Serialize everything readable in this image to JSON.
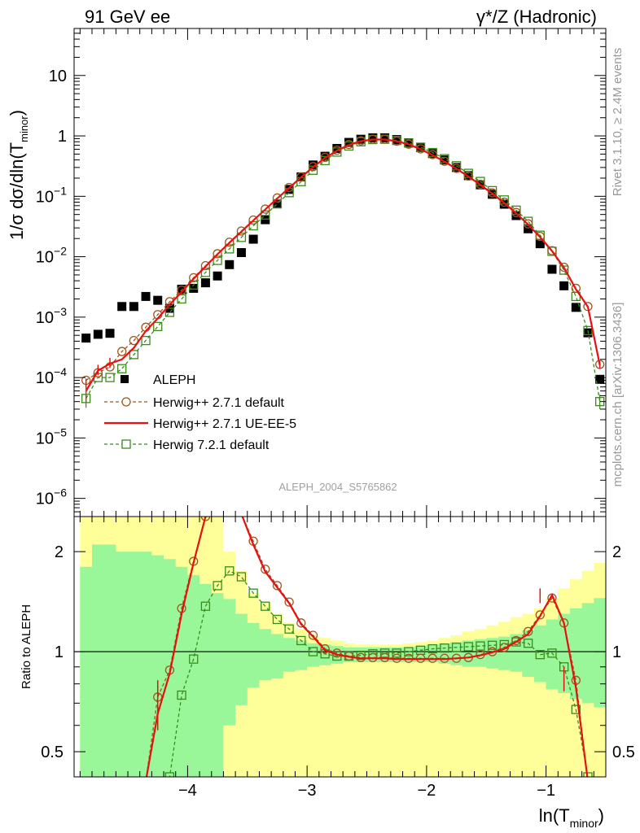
{
  "header": {
    "left": "91 GeV ee",
    "right_prefix": "γ*/Z",
    "right_suffix": "(Hadronic)"
  },
  "side_labels": {
    "rivet": "Rivet 3.1.10, ≥ 2.4M events",
    "mcplots": "mcplots.cern.ch [arXiv:1306.3436]"
  },
  "analysis_tag": "ALEPH_2004_S5765862",
  "legend": {
    "data": "ALEPH",
    "mc1": "Herwig++ 2.7.1 default",
    "mc2": "Herwig++ 2.7.1 UE-EE-5",
    "mc3": "Herwig 7.2.1 default"
  },
  "colors": {
    "data": "#000000",
    "mc1": "#a0561e",
    "mc2": "#e81010",
    "mc3": "#3a8c1a",
    "band_inner": "#99f799",
    "band_outer": "#ffff99"
  },
  "chart_data": [
    {
      "type": "scatter",
      "panel": "main",
      "ylabel_main": "1/σ  dσ/dln(T",
      "ylabel_sub": "minor",
      "ylabel_end": ")",
      "yscale": "log",
      "ylim": [
        5e-07,
        60
      ],
      "xlim": [
        -4.95,
        -0.5
      ],
      "ytick_labels": [
        {
          "value": 1e-06,
          "base": "10",
          "exp": "−6"
        },
        {
          "value": 1e-05,
          "base": "10",
          "exp": "−5"
        },
        {
          "value": 0.0001,
          "base": "10",
          "exp": "−4"
        },
        {
          "value": 0.001,
          "base": "10",
          "exp": "−3"
        },
        {
          "value": 0.01,
          "base": "10",
          "exp": "−2"
        },
        {
          "value": 0.1,
          "base": "10",
          "exp": "−1"
        },
        {
          "value": 1,
          "base": "1",
          "exp": ""
        },
        {
          "value": 10,
          "base": "10",
          "exp": ""
        }
      ],
      "x_edges": [
        -4.9,
        -4.8,
        -4.7,
        -4.6,
        -4.5,
        -4.4,
        -4.3,
        -4.2,
        -4.1,
        -4.0,
        -3.9,
        -3.8,
        -3.7,
        -3.6,
        -3.5,
        -3.4,
        -3.3,
        -3.2,
        -3.1,
        -3.0,
        -2.9,
        -2.8,
        -2.7,
        -2.6,
        -2.5,
        -2.4,
        -2.3,
        -2.2,
        -2.1,
        -2.0,
        -1.9,
        -1.8,
        -1.7,
        -1.6,
        -1.5,
        -1.4,
        -1.3,
        -1.2,
        -1.1,
        -1.0,
        -0.9,
        -0.8,
        -0.7,
        -0.6,
        -0.5
      ],
      "x_centers": [
        -4.85,
        -4.75,
        -4.65,
        -4.55,
        -4.45,
        -4.35,
        -4.25,
        -4.15,
        -4.05,
        -3.95,
        -3.85,
        -3.75,
        -3.65,
        -3.55,
        -3.45,
        -3.35,
        -3.25,
        -3.15,
        -3.05,
        -2.95,
        -2.85,
        -2.75,
        -2.65,
        -2.55,
        -2.45,
        -2.35,
        -2.25,
        -2.15,
        -2.05,
        -1.95,
        -1.85,
        -1.75,
        -1.65,
        -1.55,
        -1.45,
        -1.35,
        -1.25,
        -1.15,
        -1.05,
        -0.95,
        -0.85,
        -0.75,
        -0.65,
        -0.55
      ],
      "series": [
        {
          "name": "ALEPH",
          "values": [
            0.00045,
            0.00052,
            0.00054,
            0.0015,
            0.0015,
            0.0022,
            0.0019,
            0.0014,
            0.0029,
            0.003,
            0.0037,
            0.0048,
            0.0074,
            0.0117,
            0.0195,
            0.041,
            0.075,
            0.13,
            0.21,
            0.33,
            0.46,
            0.62,
            0.78,
            0.88,
            0.93,
            0.93,
            0.87,
            0.77,
            0.64,
            0.51,
            0.4,
            0.3,
            0.22,
            0.155,
            0.108,
            0.074,
            0.048,
            0.029,
            0.0164,
            0.0062,
            0.0033,
            0.00145,
            0.00055,
            9.35e-05
          ]
        },
        {
          "name": "Herwig++ 2.7.1 default",
          "values": [
            9e-05,
            0.00012,
            0.00015,
            0.00027,
            0.00041,
            0.00068,
            0.0011,
            0.0018,
            0.0028,
            0.0045,
            0.0071,
            0.0112,
            0.0174,
            0.0266,
            0.0405,
            0.0615,
            0.094,
            0.14,
            0.21,
            0.31,
            0.44,
            0.58,
            0.72,
            0.83,
            0.88,
            0.88,
            0.82,
            0.73,
            0.61,
            0.49,
            0.38,
            0.29,
            0.216,
            0.158,
            0.114,
            0.08,
            0.054,
            0.035,
            0.0217,
            0.0126,
            0.0067,
            0.003,
            0.0015,
            0.000165
          ]
        },
        {
          "name": "Herwig++ 2.7.1 UE-EE-5",
          "values": [
            6e-05,
            0.00013,
            0.00017,
            0.0002,
            0.00031,
            0.00059,
            0.00095,
            0.00162,
            0.0026,
            0.0043,
            0.0069,
            0.011,
            0.0171,
            0.026,
            0.0398,
            0.0605,
            0.092,
            0.138,
            0.207,
            0.305,
            0.43,
            0.57,
            0.71,
            0.82,
            0.87,
            0.87,
            0.815,
            0.725,
            0.6,
            0.48,
            0.375,
            0.285,
            0.213,
            0.155,
            0.111,
            0.077,
            0.0525,
            0.034,
            0.0211,
            0.0124,
            0.0066,
            0.0029,
            0.00148,
            0.00016
          ]
        },
        {
          "name": "Herwig 7.2.1 default",
          "values": [
            4.5e-05,
            0.0001,
            0.0001,
            0.00014,
            0.00024,
            0.00041,
            0.0007,
            0.0012,
            0.002,
            0.0034,
            0.0055,
            0.0087,
            0.0135,
            0.0209,
            0.0325,
            0.049,
            0.075,
            0.115,
            0.175,
            0.27,
            0.39,
            0.54,
            0.68,
            0.8,
            0.87,
            0.88,
            0.84,
            0.76,
            0.65,
            0.53,
            0.42,
            0.32,
            0.24,
            0.176,
            0.124,
            0.087,
            0.059,
            0.0385,
            0.0227,
            0.0123,
            0.006,
            0.0022,
            0.0006,
            4e-05
          ]
        }
      ]
    },
    {
      "type": "line",
      "panel": "ratio",
      "ylabel": "Ratio to ALEPH",
      "xlabel_main": "ln(T",
      "xlabel_sub": "minor",
      "xlabel_end": ")",
      "yscale": "log",
      "ylim": [
        0.42,
        2.55
      ],
      "xlim": [
        -4.95,
        -0.5
      ],
      "ytick_labels": [
        {
          "value": 0.5,
          "label": "0.5"
        },
        {
          "value": 1,
          "label": "1"
        },
        {
          "value": 2,
          "label": "2"
        }
      ],
      "xtick_labels": [
        {
          "value": -4,
          "label": "−4"
        },
        {
          "value": -3,
          "label": "−3"
        },
        {
          "value": -2,
          "label": "−2"
        },
        {
          "value": -1,
          "label": "−1"
        }
      ],
      "band_inner_low": [
        0.42,
        0.42,
        0.42,
        0.42,
        0.42,
        0.42,
        0.42,
        0.42,
        0.42,
        0.42,
        0.42,
        0.42,
        0.6,
        0.69,
        0.78,
        0.82,
        0.83,
        0.87,
        0.88,
        0.9,
        0.91,
        0.92,
        0.93,
        0.93,
        0.93,
        0.93,
        0.93,
        0.93,
        0.93,
        0.93,
        0.92,
        0.91,
        0.9,
        0.9,
        0.89,
        0.88,
        0.87,
        0.84,
        0.81,
        0.77,
        0.75,
        0.72,
        0.7,
        0.68
      ],
      "band_inner_high": [
        1.8,
        2.1,
        2.1,
        2.0,
        2.0,
        2.0,
        1.95,
        1.9,
        1.8,
        1.7,
        1.6,
        1.5,
        1.44,
        1.3,
        1.22,
        1.17,
        1.13,
        1.1,
        1.08,
        1.06,
        1.05,
        1.04,
        1.03,
        1.03,
        1.03,
        1.03,
        1.03,
        1.03,
        1.04,
        1.05,
        1.06,
        1.07,
        1.08,
        1.09,
        1.1,
        1.11,
        1.13,
        1.16,
        1.2,
        1.25,
        1.3,
        1.35,
        1.4,
        1.45
      ],
      "band_outer_low": [
        0.42,
        0.42,
        0.42,
        0.42,
        0.42,
        0.42,
        0.42,
        0.42,
        0.42,
        0.42,
        0.42,
        0.42,
        0.42,
        0.42,
        0.42,
        0.42,
        0.42,
        0.42,
        0.42,
        0.42,
        0.42,
        0.42,
        0.42,
        0.42,
        0.42,
        0.42,
        0.42,
        0.42,
        0.42,
        0.42,
        0.42,
        0.42,
        0.42,
        0.42,
        0.42,
        0.42,
        0.42,
        0.42,
        0.42,
        0.42,
        0.42,
        0.42,
        0.42,
        0.42
      ],
      "band_outer_high": [
        2.55,
        2.55,
        2.55,
        2.55,
        2.55,
        2.55,
        2.55,
        2.55,
        2.55,
        2.55,
        2.55,
        2.55,
        2.0,
        1.75,
        1.5,
        1.4,
        1.3,
        1.22,
        1.17,
        1.12,
        1.1,
        1.08,
        1.06,
        1.05,
        1.05,
        1.05,
        1.05,
        1.06,
        1.07,
        1.08,
        1.1,
        1.12,
        1.15,
        1.17,
        1.2,
        1.23,
        1.27,
        1.3,
        1.35,
        1.45,
        1.55,
        1.65,
        1.75,
        1.85
      ],
      "series": [
        {
          "name": "Herwig++ 2.7.1 default",
          "values": [
            null,
            null,
            null,
            null,
            null,
            0.33,
            0.73,
            0.88,
            1.35,
            1.87,
            2.55,
            2.6,
            2.65,
            2.6,
            2.15,
            1.77,
            1.58,
            1.41,
            1.22,
            1.12,
            1.02,
            0.99,
            0.97,
            0.96,
            0.96,
            0.96,
            0.955,
            0.955,
            0.955,
            0.955,
            0.955,
            0.955,
            0.96,
            0.98,
            1.0,
            1.03,
            1.08,
            1.15,
            1.29,
            1.45,
            1.22,
            0.82,
            0.3,
            null
          ]
        },
        {
          "name": "Herwig++ 2.7.1 UE-EE-5",
          "values": [
            null,
            null,
            null,
            null,
            null,
            0.3,
            0.65,
            0.86,
            1.3,
            1.85,
            2.55,
            2.6,
            2.65,
            2.6,
            2.1,
            1.74,
            1.56,
            1.4,
            1.21,
            1.11,
            1.01,
            0.98,
            0.965,
            0.955,
            0.955,
            0.955,
            0.95,
            0.95,
            0.95,
            0.95,
            0.95,
            0.955,
            0.96,
            0.975,
            0.995,
            1.02,
            1.07,
            1.13,
            1.28,
            1.48,
            1.22,
            0.78,
            0.3,
            null
          ]
        },
        {
          "name": "Herwig 7.2.1 default",
          "values": [
            null,
            null,
            null,
            null,
            null,
            0.39,
            0.4,
            0.42,
            0.74,
            0.95,
            1.37,
            1.58,
            1.75,
            1.68,
            1.5,
            1.37,
            1.25,
            1.17,
            1.08,
            1.0,
            0.985,
            0.97,
            0.97,
            0.975,
            0.985,
            0.99,
            0.99,
            1.0,
            1.01,
            1.02,
            1.025,
            1.03,
            1.035,
            1.04,
            1.045,
            1.05,
            1.07,
            1.06,
            0.98,
            0.99,
            0.9,
            0.67,
            0.42,
            null
          ]
        }
      ]
    }
  ]
}
